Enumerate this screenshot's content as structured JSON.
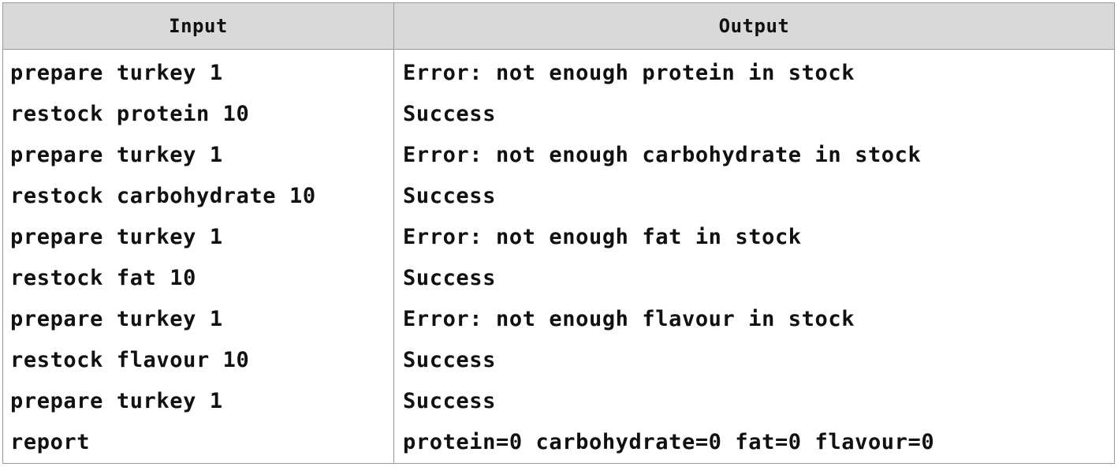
{
  "table": {
    "headers": {
      "input": "Input",
      "output": "Output"
    },
    "rows": [
      {
        "input": "prepare turkey 1",
        "output": "Error: not enough protein in stock"
      },
      {
        "input": "restock protein 10",
        "output": "Success"
      },
      {
        "input": "prepare turkey 1",
        "output": "Error: not enough carbohydrate in stock"
      },
      {
        "input": "restock carbohydrate 10",
        "output": "Success"
      },
      {
        "input": "prepare turkey 1",
        "output": "Error: not enough fat in stock"
      },
      {
        "input": "restock fat 10",
        "output": "Success"
      },
      {
        "input": "prepare turkey 1",
        "output": "Error: not enough flavour in stock"
      },
      {
        "input": "restock flavour 10",
        "output": "Success"
      },
      {
        "input": "prepare turkey 1",
        "output": "Success"
      },
      {
        "input": "report",
        "output": "protein=0 carbohydrate=0 fat=0 flavour=0"
      }
    ]
  }
}
